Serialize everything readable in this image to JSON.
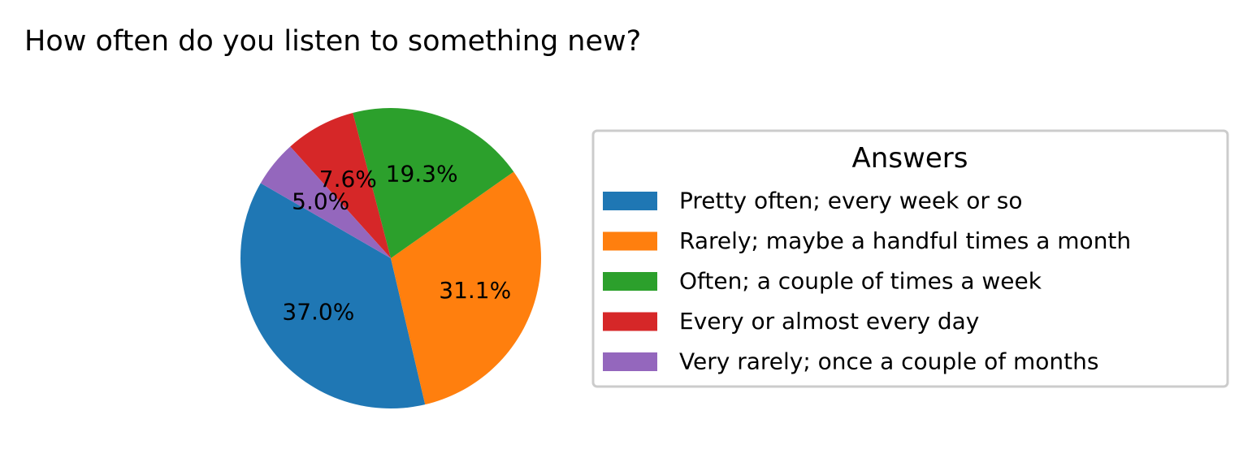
{
  "chart_data": {
    "type": "pie",
    "title": "How often do you listen to something new?",
    "legend_title": "Answers",
    "legend_placement": "right",
    "start_angle_deg": 150,
    "direction": "counterclockwise",
    "slices": [
      {
        "label": "Pretty often; every week or so",
        "value": 37.0,
        "pct_label": "37.0%",
        "color": "#1f77b4"
      },
      {
        "label": "Rarely; maybe a handful times a month",
        "value": 31.1,
        "pct_label": "31.1%",
        "color": "#ff7f0e"
      },
      {
        "label": "Often; a couple of times a week",
        "value": 19.3,
        "pct_label": "19.3%",
        "color": "#2ca02c"
      },
      {
        "label": "Every or almost every day",
        "value": 7.6,
        "pct_label": "7.6%",
        "color": "#d62728"
      },
      {
        "label": "Very rarely; once a couple of months",
        "value": 5.0,
        "pct_label": "5.0%",
        "color": "#9467bd"
      }
    ]
  }
}
